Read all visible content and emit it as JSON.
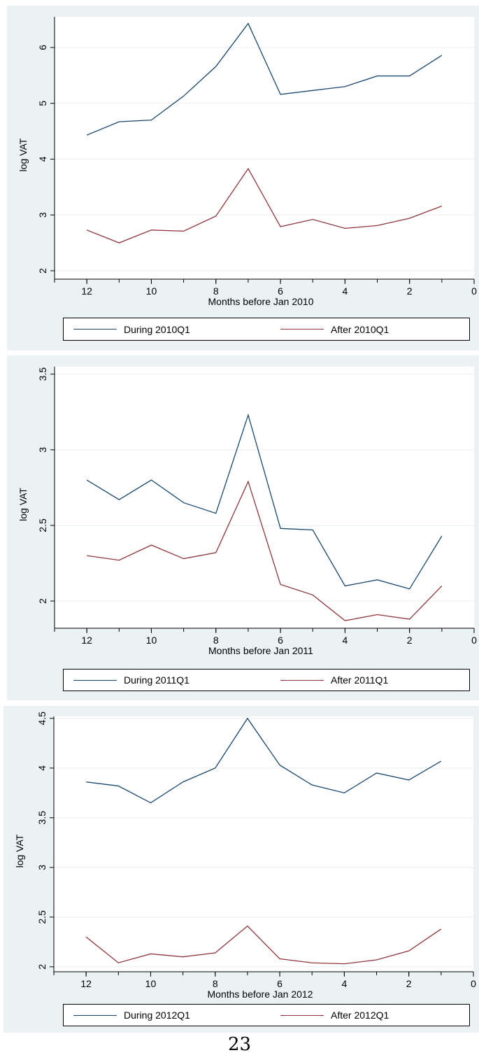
{
  "page_number": "23",
  "colors": {
    "background": "#eaf2f3",
    "plot_region": "#ffffff",
    "during": "#1a476f",
    "after": "#90353b",
    "grid": "#eaf2f3"
  },
  "chart_data": [
    {
      "type": "line",
      "title": "",
      "xlabel": "Months before Jan 2010",
      "ylabel": "log VAT",
      "xlim": [
        0,
        13
      ],
      "x_reversed": true,
      "ylim": [
        1.85,
        6.55
      ],
      "xticks": [
        12,
        10,
        8,
        6,
        4,
        2,
        0
      ],
      "yticks": [
        2,
        3,
        4,
        5,
        6
      ],
      "x": [
        12,
        11,
        10,
        9,
        8,
        7,
        6,
        5,
        4,
        3,
        2,
        1
      ],
      "series": [
        {
          "name": "During 2010Q1",
          "values": [
            4.43,
            4.67,
            4.7,
            5.13,
            5.66,
            6.43,
            5.16,
            5.23,
            5.3,
            5.49,
            5.49,
            5.86
          ]
        },
        {
          "name": "After 2010Q1",
          "values": [
            2.73,
            2.5,
            2.73,
            2.71,
            2.98,
            3.83,
            2.79,
            2.92,
            2.76,
            2.81,
            2.94,
            3.16
          ]
        }
      ],
      "legend": "bottom",
      "grid": true
    },
    {
      "type": "line",
      "title": "",
      "xlabel": "Months before Jan 2011",
      "ylabel": "log VAT",
      "xlim": [
        0,
        13
      ],
      "x_reversed": true,
      "ylim": [
        1.82,
        3.55
      ],
      "xticks": [
        12,
        10,
        8,
        6,
        4,
        2,
        0
      ],
      "yticks": [
        2,
        2.5,
        3,
        3.5
      ],
      "x": [
        12,
        11,
        10,
        9,
        8,
        7,
        6,
        5,
        4,
        3,
        2,
        1
      ],
      "series": [
        {
          "name": "During 2011Q1",
          "values": [
            2.8,
            2.67,
            2.8,
            2.65,
            2.58,
            3.23,
            2.48,
            2.47,
            2.1,
            2.14,
            2.08,
            2.43
          ]
        },
        {
          "name": "After 2011Q1",
          "values": [
            2.3,
            2.27,
            2.37,
            2.28,
            2.32,
            2.79,
            2.11,
            2.04,
            1.87,
            1.91,
            1.88,
            2.1
          ]
        }
      ],
      "legend": "bottom",
      "grid": true
    },
    {
      "type": "line",
      "title": "",
      "xlabel": "Months before Jan 2012",
      "ylabel": "log VAT",
      "xlim": [
        0,
        13
      ],
      "x_reversed": true,
      "ylim": [
        1.95,
        4.52
      ],
      "xticks": [
        12,
        10,
        8,
        6,
        4,
        2,
        0
      ],
      "yticks": [
        2,
        2.5,
        3,
        3.5,
        4,
        4.5
      ],
      "x": [
        12,
        11,
        10,
        9,
        8,
        7,
        6,
        5,
        4,
        3,
        2,
        1
      ],
      "series": [
        {
          "name": "During 2012Q1",
          "values": [
            3.86,
            3.82,
            3.65,
            3.86,
            4.0,
            4.5,
            4.03,
            3.83,
            3.75,
            3.95,
            3.88,
            4.07
          ]
        },
        {
          "name": "After 2012Q1",
          "values": [
            2.3,
            2.04,
            2.13,
            2.1,
            2.14,
            2.41,
            2.08,
            2.04,
            2.03,
            2.07,
            2.16,
            2.38
          ]
        }
      ],
      "legend": "bottom",
      "grid": true
    }
  ]
}
